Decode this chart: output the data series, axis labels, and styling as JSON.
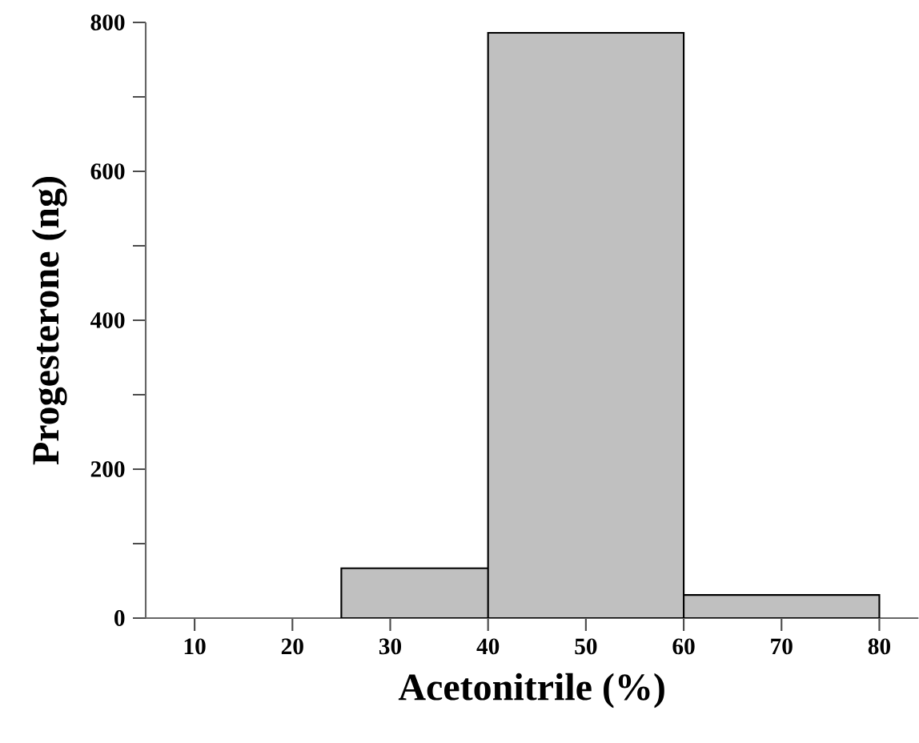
{
  "chart_data": {
    "type": "histogram",
    "xlabel": "Acetonitrile (%)",
    "ylabel": "Progesterone (ng)",
    "bins": [
      25,
      40,
      60,
      80
    ],
    "values": [
      67,
      786,
      31
    ],
    "color": "#c0c0c0",
    "xlim": [
      5,
      84
    ],
    "xticks": [
      10,
      20,
      30,
      40,
      50,
      60,
      70,
      80
    ],
    "ylim": [
      0,
      800
    ],
    "yticks": [
      0,
      {
        "value": 100,
        "label": null
      },
      200,
      {
        "value": 300,
        "label": null
      },
      400,
      {
        "value": 500,
        "label": null
      },
      600,
      {
        "value": 700,
        "label": null
      },
      800
    ],
    "grid": false
  }
}
